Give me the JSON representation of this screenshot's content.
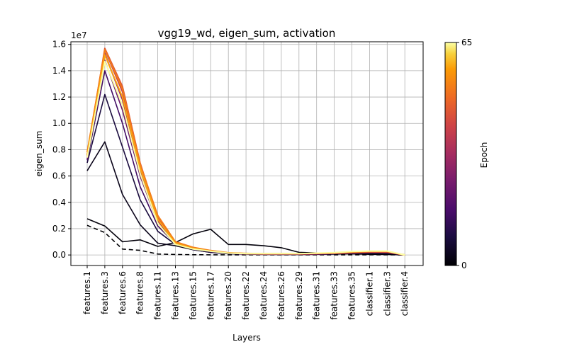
{
  "chart_data": {
    "type": "line",
    "title": "vgg19_wd, eigen_sum, activation",
    "xlabel": "Layers",
    "ylabel": "eigen_sum",
    "y_offset_label": "1e7",
    "y_multiplier": 10000000,
    "ylim": [
      -0.08,
      1.62
    ],
    "yticks": [
      0.0,
      0.2,
      0.4,
      0.6,
      0.8,
      1.0,
      1.2,
      1.4,
      1.6
    ],
    "grid": true,
    "categories": [
      "features.1",
      "features.3",
      "features.6",
      "features.8",
      "features.11",
      "features.13",
      "features.15",
      "features.17",
      "features.20",
      "features.22",
      "features.24",
      "features.26",
      "features.29",
      "features.31",
      "features.33",
      "features.35",
      "classifier.1",
      "classifier.3",
      "classifier.4"
    ],
    "colorbar": {
      "label": "Epoch",
      "min": 0,
      "max": 65,
      "colormap": "inferno"
    },
    "series": [
      {
        "epoch": 0,
        "style": "dashed",
        "values": [
          0.225,
          0.17,
          0.045,
          0.035,
          0.007,
          0.004,
          0.002,
          0.001,
          0.001,
          0.001,
          0.001,
          0.001,
          0.001,
          0.001,
          0.001,
          0.001,
          0.001,
          0.001,
          0.0
        ]
      },
      {
        "epoch": 1,
        "values": [
          0.275,
          0.22,
          0.1,
          0.115,
          0.065,
          0.095,
          0.16,
          0.195,
          0.08,
          0.08,
          0.07,
          0.055,
          0.02,
          0.015,
          0.01,
          0.008,
          0.005,
          0.004,
          0.0
        ]
      },
      {
        "epoch": 3,
        "values": [
          0.64,
          0.86,
          0.46,
          0.23,
          0.09,
          0.07,
          0.04,
          0.02,
          0.01,
          0.008,
          0.005,
          0.004,
          0.004,
          0.005,
          0.006,
          0.01,
          0.012,
          0.012,
          0.0
        ]
      },
      {
        "epoch": 8,
        "values": [
          0.7,
          1.22,
          0.82,
          0.42,
          0.18,
          0.08,
          0.04,
          0.02,
          0.01,
          0.006,
          0.004,
          0.004,
          0.004,
          0.005,
          0.008,
          0.012,
          0.015,
          0.015,
          0.0
        ]
      },
      {
        "epoch": 15,
        "values": [
          0.72,
          1.4,
          1.0,
          0.52,
          0.22,
          0.085,
          0.045,
          0.025,
          0.012,
          0.007,
          0.005,
          0.005,
          0.005,
          0.007,
          0.01,
          0.015,
          0.018,
          0.018,
          0.0
        ]
      },
      {
        "epoch": 22,
        "values": [
          0.73,
          1.48,
          1.1,
          0.6,
          0.24,
          0.09,
          0.05,
          0.028,
          0.013,
          0.008,
          0.006,
          0.006,
          0.006,
          0.008,
          0.011,
          0.016,
          0.02,
          0.02,
          0.0
        ]
      },
      {
        "epoch": 30,
        "values": [
          0.74,
          1.53,
          1.18,
          0.64,
          0.26,
          0.092,
          0.052,
          0.03,
          0.014,
          0.009,
          0.007,
          0.007,
          0.007,
          0.009,
          0.012,
          0.017,
          0.021,
          0.021,
          0.0
        ]
      },
      {
        "epoch": 38,
        "values": [
          0.75,
          1.56,
          1.24,
          0.67,
          0.27,
          0.094,
          0.054,
          0.031,
          0.015,
          0.01,
          0.008,
          0.008,
          0.008,
          0.01,
          0.013,
          0.018,
          0.022,
          0.022,
          0.0
        ]
      },
      {
        "epoch": 45,
        "values": [
          0.76,
          1.57,
          1.28,
          0.7,
          0.28,
          0.095,
          0.055,
          0.032,
          0.016,
          0.011,
          0.009,
          0.009,
          0.009,
          0.011,
          0.014,
          0.02,
          0.024,
          0.024,
          0.0
        ]
      },
      {
        "epoch": 52,
        "values": [
          0.78,
          1.56,
          1.26,
          0.69,
          0.3,
          0.1,
          0.058,
          0.034,
          0.017,
          0.012,
          0.01,
          0.01,
          0.01,
          0.012,
          0.015,
          0.022,
          0.026,
          0.026,
          0.0
        ]
      },
      {
        "epoch": 58,
        "values": [
          0.76,
          1.52,
          1.2,
          0.66,
          0.27,
          0.09,
          0.05,
          0.03,
          0.015,
          0.011,
          0.01,
          0.01,
          0.01,
          0.013,
          0.016,
          0.024,
          0.028,
          0.028,
          0.0
        ]
      },
      {
        "epoch": 65,
        "values": [
          0.74,
          1.47,
          1.14,
          0.62,
          0.24,
          0.08,
          0.045,
          0.028,
          0.014,
          0.01,
          0.01,
          0.01,
          0.01,
          0.014,
          0.018,
          0.026,
          0.03,
          0.03,
          0.0
        ]
      }
    ]
  }
}
